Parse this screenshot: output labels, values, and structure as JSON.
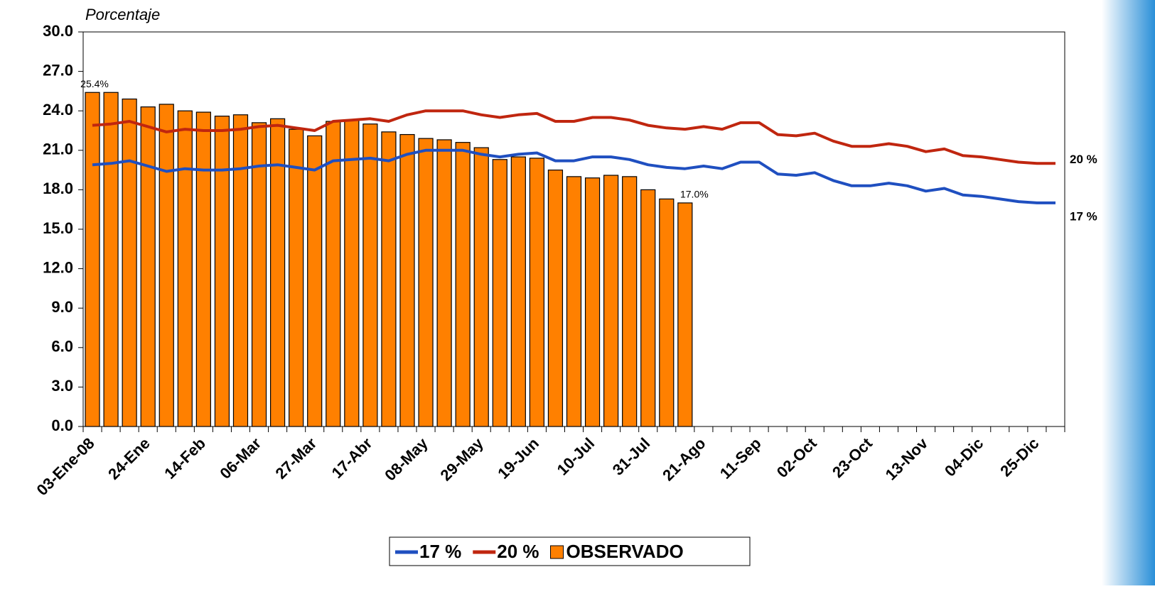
{
  "chart_data": {
    "type": "bar",
    "y_label": "Porcentaje",
    "categories": [
      "03-Ene-08",
      null,
      null,
      "24-Ene",
      null,
      null,
      "14-Feb",
      null,
      null,
      "06-Mar",
      null,
      null,
      "27-Mar",
      null,
      null,
      "17-Abr",
      null,
      null,
      "08-May",
      null,
      null,
      "29-May",
      null,
      null,
      "19-Jun",
      null,
      null,
      "10-Jul",
      null,
      null,
      "31-Jul",
      null,
      null,
      "21-Ago",
      null,
      null,
      "11-Sep",
      null,
      null,
      "02-Oct",
      null,
      null,
      "23-Oct",
      null,
      null,
      "13-Nov",
      null,
      null,
      "04-Dic",
      null,
      null,
      "25-Dic",
      null
    ],
    "series": [
      {
        "name": "17 %",
        "type": "line",
        "color": "#1f4fc0",
        "values": [
          19.9,
          20.0,
          20.2,
          19.8,
          19.4,
          19.6,
          19.5,
          19.5,
          19.6,
          19.8,
          19.9,
          19.7,
          19.5,
          20.2,
          20.3,
          20.4,
          20.2,
          20.7,
          21.0,
          21.0,
          21.0,
          20.7,
          20.5,
          20.7,
          20.8,
          20.2,
          20.2,
          20.5,
          20.5,
          20.3,
          19.9,
          19.7,
          19.6,
          19.8,
          19.6,
          20.1,
          20.1,
          19.2,
          19.1,
          19.3,
          18.7,
          18.3,
          18.3,
          18.5,
          18.3,
          17.9,
          18.1,
          17.6,
          17.5,
          17.3,
          17.1,
          17.0,
          17.0
        ]
      },
      {
        "name": "20 %",
        "type": "line",
        "color": "#c0260f",
        "values": [
          22.9,
          23.0,
          23.2,
          22.8,
          22.4,
          22.6,
          22.5,
          22.5,
          22.6,
          22.8,
          22.9,
          22.7,
          22.5,
          23.2,
          23.3,
          23.4,
          23.2,
          23.7,
          24.0,
          24.0,
          24.0,
          23.7,
          23.5,
          23.7,
          23.8,
          23.2,
          23.2,
          23.5,
          23.5,
          23.3,
          22.9,
          22.7,
          22.6,
          22.8,
          22.6,
          23.1,
          23.1,
          22.2,
          22.1,
          22.3,
          21.7,
          21.3,
          21.3,
          21.5,
          21.3,
          20.9,
          21.1,
          20.6,
          20.5,
          20.3,
          20.1,
          20.0,
          20.0
        ]
      },
      {
        "name": "OBSERVADO",
        "type": "bar",
        "color": "#ff8000",
        "values": [
          25.4,
          25.4,
          24.9,
          24.3,
          24.5,
          24.0,
          23.9,
          23.6,
          23.7,
          23.1,
          23.4,
          22.6,
          22.1,
          23.2,
          23.3,
          23.0,
          22.4,
          22.2,
          21.9,
          21.8,
          21.6,
          21.2,
          20.3,
          20.5,
          20.4,
          19.5,
          19.0,
          18.9,
          19.1,
          19.0,
          18.0,
          17.3,
          17.0,
          null,
          null,
          null,
          null,
          null,
          null,
          null,
          null,
          null,
          null,
          null,
          null,
          null,
          null,
          null,
          null,
          null,
          null,
          null,
          null
        ],
        "value_labels": [
          "25.4%",
          null,
          null,
          null,
          null,
          null,
          null,
          null,
          null,
          null,
          null,
          null,
          null,
          null,
          null,
          null,
          null,
          null,
          null,
          null,
          null,
          null,
          null,
          null,
          null,
          null,
          null,
          null,
          null,
          null,
          null,
          null,
          "17.0%",
          null,
          null,
          null,
          null,
          null,
          null,
          null,
          null,
          null,
          null,
          null,
          null,
          null,
          null,
          null,
          null,
          null,
          null,
          null,
          null
        ]
      }
    ],
    "ylim": [
      0,
      30
    ],
    "yticks": [
      {
        "value": 0,
        "label": "0.0"
      },
      {
        "value": 3,
        "label": "3.0"
      },
      {
        "value": 6,
        "label": "6.0"
      },
      {
        "value": 9,
        "label": "9.0"
      },
      {
        "value": 12,
        "label": "12.0"
      },
      {
        "value": 15,
        "label": "15.0"
      },
      {
        "value": 18,
        "label": "18.0"
      },
      {
        "value": 21,
        "label": "21.0"
      },
      {
        "value": 24,
        "label": "24.0"
      },
      {
        "value": 27,
        "label": "27.0"
      },
      {
        "value": 30,
        "label": "30.0"
      }
    ],
    "grid": false,
    "legend": "bottom"
  }
}
